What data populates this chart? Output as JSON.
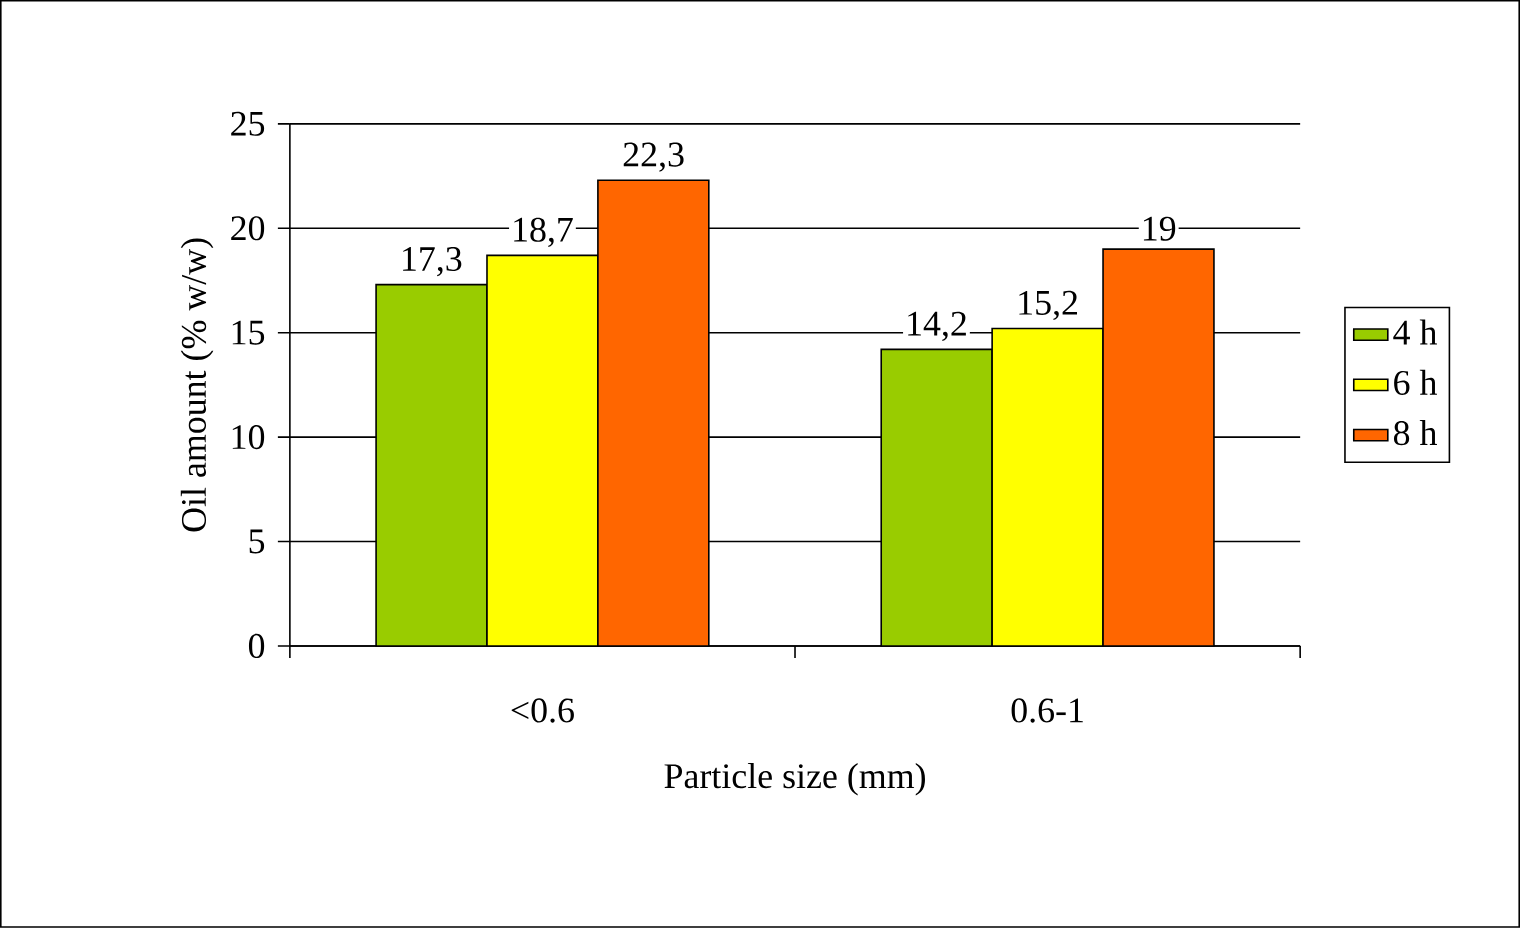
{
  "chart_data": {
    "type": "bar",
    "xlabel": "Particle size (mm)",
    "ylabel": "Oil amount (% w/w)",
    "categories": [
      "<0.6",
      "0.6-1"
    ],
    "series": [
      {
        "name": "4 h",
        "color": "#99cc00",
        "values": [
          17.3,
          14.2
        ],
        "value_labels": [
          "17,3",
          "14,2"
        ]
      },
      {
        "name": "6 h",
        "color": "#ffff00",
        "values": [
          18.7,
          15.2
        ],
        "value_labels": [
          "18,7",
          "15,2"
        ]
      },
      {
        "name": "8 h",
        "color": "#ff6600",
        "values": [
          22.3,
          19
        ],
        "value_labels": [
          "22,3",
          "19"
        ]
      }
    ],
    "ylim": [
      0,
      25
    ],
    "yticks": [
      0,
      5,
      10,
      15,
      20,
      25
    ],
    "grid": "y",
    "legend": "right"
  }
}
